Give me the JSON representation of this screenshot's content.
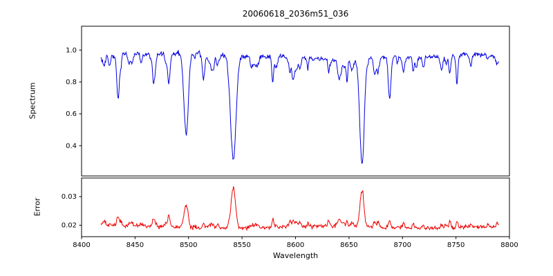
{
  "figure": {
    "background": "#ffffff",
    "axis_color": "#000000",
    "text_color": "#000000"
  },
  "chart_data": {
    "type": "line",
    "title": "20060618_2036m51_036",
    "xlabel": "Wavelength",
    "grid": false,
    "legend": false,
    "x_range": [
      8400,
      8800
    ],
    "data_x_range": [
      8418,
      8790
    ],
    "x_ticks": [
      {
        "value": 8400,
        "label": "8400"
      },
      {
        "value": 8450,
        "label": "8450"
      },
      {
        "value": 8500,
        "label": "8500"
      },
      {
        "value": 8550,
        "label": "8550"
      },
      {
        "value": 8600,
        "label": "8600"
      },
      {
        "value": 8650,
        "label": "8650"
      },
      {
        "value": 8700,
        "label": "8700"
      },
      {
        "value": 8750,
        "label": "8750"
      },
      {
        "value": 8800,
        "label": "8800"
      }
    ],
    "panels": [
      {
        "name": "spectrum",
        "ylabel": "Spectrum",
        "color": "#0000dd",
        "ylim": [
          0.21,
          1.15
        ],
        "yticks": [
          {
            "value": 0.4,
            "label": "0.4"
          },
          {
            "value": 0.6,
            "label": "0.6"
          },
          {
            "value": 0.8,
            "label": "0.8"
          },
          {
            "value": 1.0,
            "label": "1.0"
          }
        ]
      },
      {
        "name": "error",
        "ylabel": "Error",
        "color": "#ee0000",
        "ylim": [
          0.016,
          0.0365
        ],
        "yticks": [
          {
            "value": 0.02,
            "label": "0.02"
          },
          {
            "value": 0.03,
            "label": "0.03"
          }
        ]
      }
    ],
    "continuum_level": 0.962,
    "error_baseline": 0.0193,
    "absorption_lines": [
      {
        "center": 8426,
        "depth": 0.08,
        "width": 0.9,
        "error_peak": 0.0203
      },
      {
        "center": 8434,
        "depth": 0.27,
        "width": 1.1,
        "error_peak": 0.0226
      },
      {
        "center": 8444,
        "depth": 0.06,
        "width": 0.9,
        "error_peak": 0.02
      },
      {
        "center": 8468,
        "depth": 0.14,
        "width": 1.3,
        "error_peak": 0.0211
      },
      {
        "center": 8498,
        "depth": 0.5,
        "width": 1.9,
        "error_peak": 0.0268
      },
      {
        "center": 8514,
        "depth": 0.16,
        "width": 1.2,
        "error_peak": 0.0209
      },
      {
        "center": 8523,
        "depth": 0.08,
        "width": 0.9,
        "error_peak": 0.0201
      },
      {
        "center": 8542,
        "depth": 0.65,
        "width": 2.4,
        "error_peak": 0.0332
      },
      {
        "center": 8582,
        "depth": 0.07,
        "width": 1.0,
        "error_peak": 0.02
      },
      {
        "center": 8598,
        "depth": 0.1,
        "width": 1.1,
        "error_peak": 0.0203
      },
      {
        "center": 8648,
        "depth": 0.07,
        "width": 1.0,
        "error_peak": 0.02
      },
      {
        "center": 8662,
        "depth": 0.63,
        "width": 2.1,
        "error_peak": 0.0313
      },
      {
        "center": 8674,
        "depth": 0.07,
        "width": 0.9,
        "error_peak": 0.0201
      },
      {
        "center": 8688,
        "depth": 0.26,
        "width": 1.3,
        "error_peak": 0.0219
      },
      {
        "center": 8713,
        "depth": 0.07,
        "width": 0.9,
        "error_peak": 0.02
      },
      {
        "center": 8736,
        "depth": 0.07,
        "width": 0.9,
        "error_peak": 0.02
      },
      {
        "center": 8751,
        "depth": 0.1,
        "width": 1.0,
        "error_peak": 0.0204
      },
      {
        "center": 8764,
        "depth": 0.06,
        "width": 0.9,
        "error_peak": 0.02
      }
    ],
    "synth": {
      "seed": 42,
      "step": 0.5,
      "noise_sigma": 0.007,
      "error_noise_sigma": 0.00035,
      "micro_line_count": 70,
      "micro_depth_min": 0.01,
      "micro_depth_max": 0.085,
      "micro_width_min": 0.5,
      "micro_width_max": 1.4,
      "micro_error_factor": 0.02
    }
  }
}
